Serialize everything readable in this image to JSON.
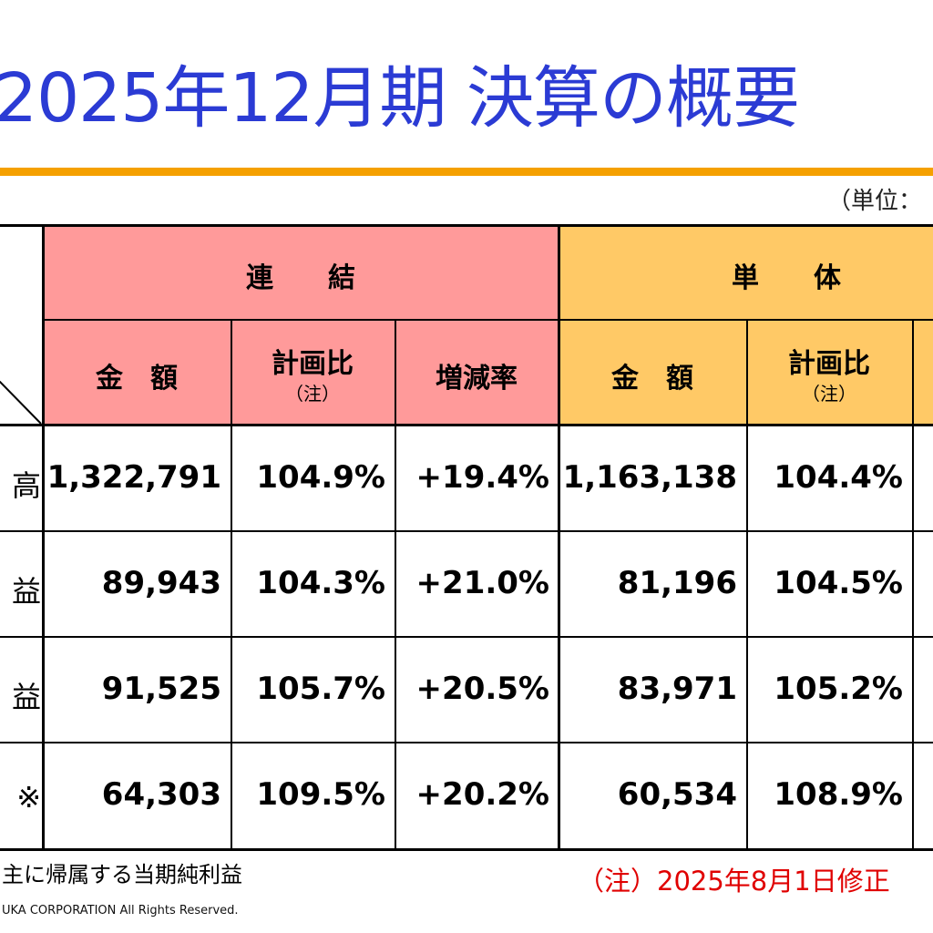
{
  "title": "2025年12月期 決算の概要",
  "unit_label": "（単位：",
  "header": {
    "group_consolidated": "連　　結",
    "group_nonconsolidated": "単　　体",
    "col_amount": "金　額",
    "col_plan_ratio": "計画比",
    "col_plan_note": "（注）",
    "col_growth": "増減率"
  },
  "rows": [
    {
      "label": "高",
      "c_amount": "1,322,791",
      "c_plan": "104.9%",
      "c_growth": "+19.4%",
      "s_amount": "1,163,138",
      "s_plan": "104.4%"
    },
    {
      "label": "益",
      "c_amount": "89,943",
      "c_plan": "104.3%",
      "c_growth": "+21.0%",
      "s_amount": "81,196",
      "s_plan": "104.5%"
    },
    {
      "label": "益",
      "c_amount": "91,525",
      "c_plan": "105.7%",
      "c_growth": "+20.5%",
      "s_amount": "83,971",
      "s_plan": "105.2%"
    },
    {
      "label": "※",
      "c_amount": "64,303",
      "c_plan": "109.5%",
      "c_growth": "+20.2%",
      "s_amount": "60,534",
      "s_plan": "108.9%"
    }
  ],
  "footnote_left": "主に帰属する当期純利益",
  "footnote_right": "（注）2025年8月1日修正",
  "copyright": "UKA CORPORATION All Rights Reserved.",
  "colors": {
    "title": "#2b3bd4",
    "rule": "#f5a000",
    "consolidated_header": "#ff9a9a",
    "nonconsolidated_header": "#ffc966",
    "note_red": "#e00000"
  }
}
